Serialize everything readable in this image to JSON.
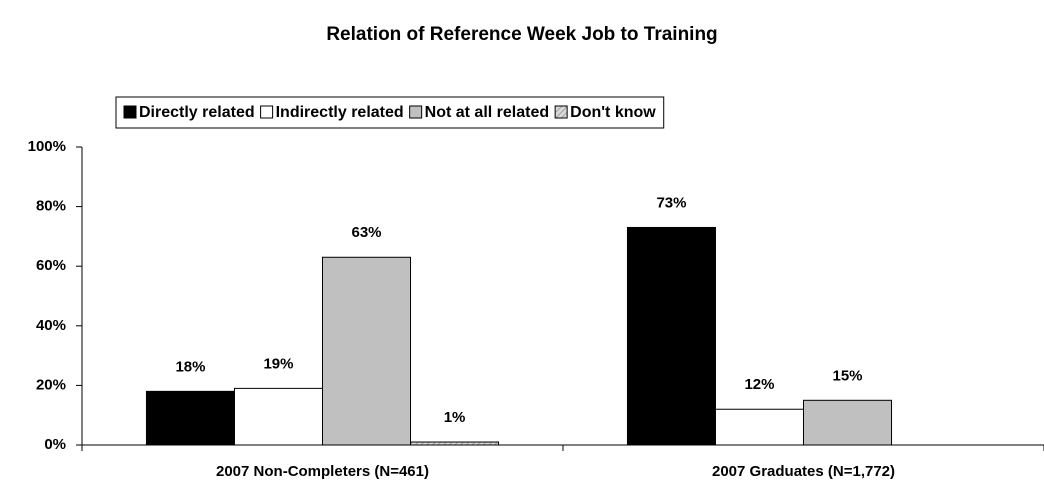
{
  "chart_data": {
    "type": "bar",
    "title": "Relation of Reference Week Job to Training",
    "categories": [
      "2007 Non-Completers (N=461)",
      "2007 Graduates (N=1,772)"
    ],
    "series": [
      {
        "name": "Directly related",
        "color": "#000000",
        "values": [
          18,
          73
        ],
        "value_labels": [
          "18%",
          "73%"
        ]
      },
      {
        "name": "Indirectly related",
        "color": "#ffffff",
        "values": [
          19,
          12
        ],
        "value_labels": [
          "19%",
          "12%"
        ]
      },
      {
        "name": "Not at all related",
        "color": "#c0c0c0",
        "values": [
          63,
          15
        ],
        "value_labels": [
          "63%",
          "15%"
        ]
      },
      {
        "name": "Don't know",
        "color": "#d9d9d9",
        "hatch": true,
        "values": [
          1,
          null
        ],
        "value_labels": [
          "1%",
          null
        ]
      }
    ],
    "ylim": [
      0,
      100
    ],
    "yticks": [
      {
        "value": 0,
        "label": "0%"
      },
      {
        "value": 20,
        "label": "20%"
      },
      {
        "value": 40,
        "label": "40%"
      },
      {
        "value": 60,
        "label": "60%"
      },
      {
        "value": 80,
        "label": "80%"
      },
      {
        "value": 100,
        "label": "100%"
      }
    ],
    "legend": "top"
  }
}
